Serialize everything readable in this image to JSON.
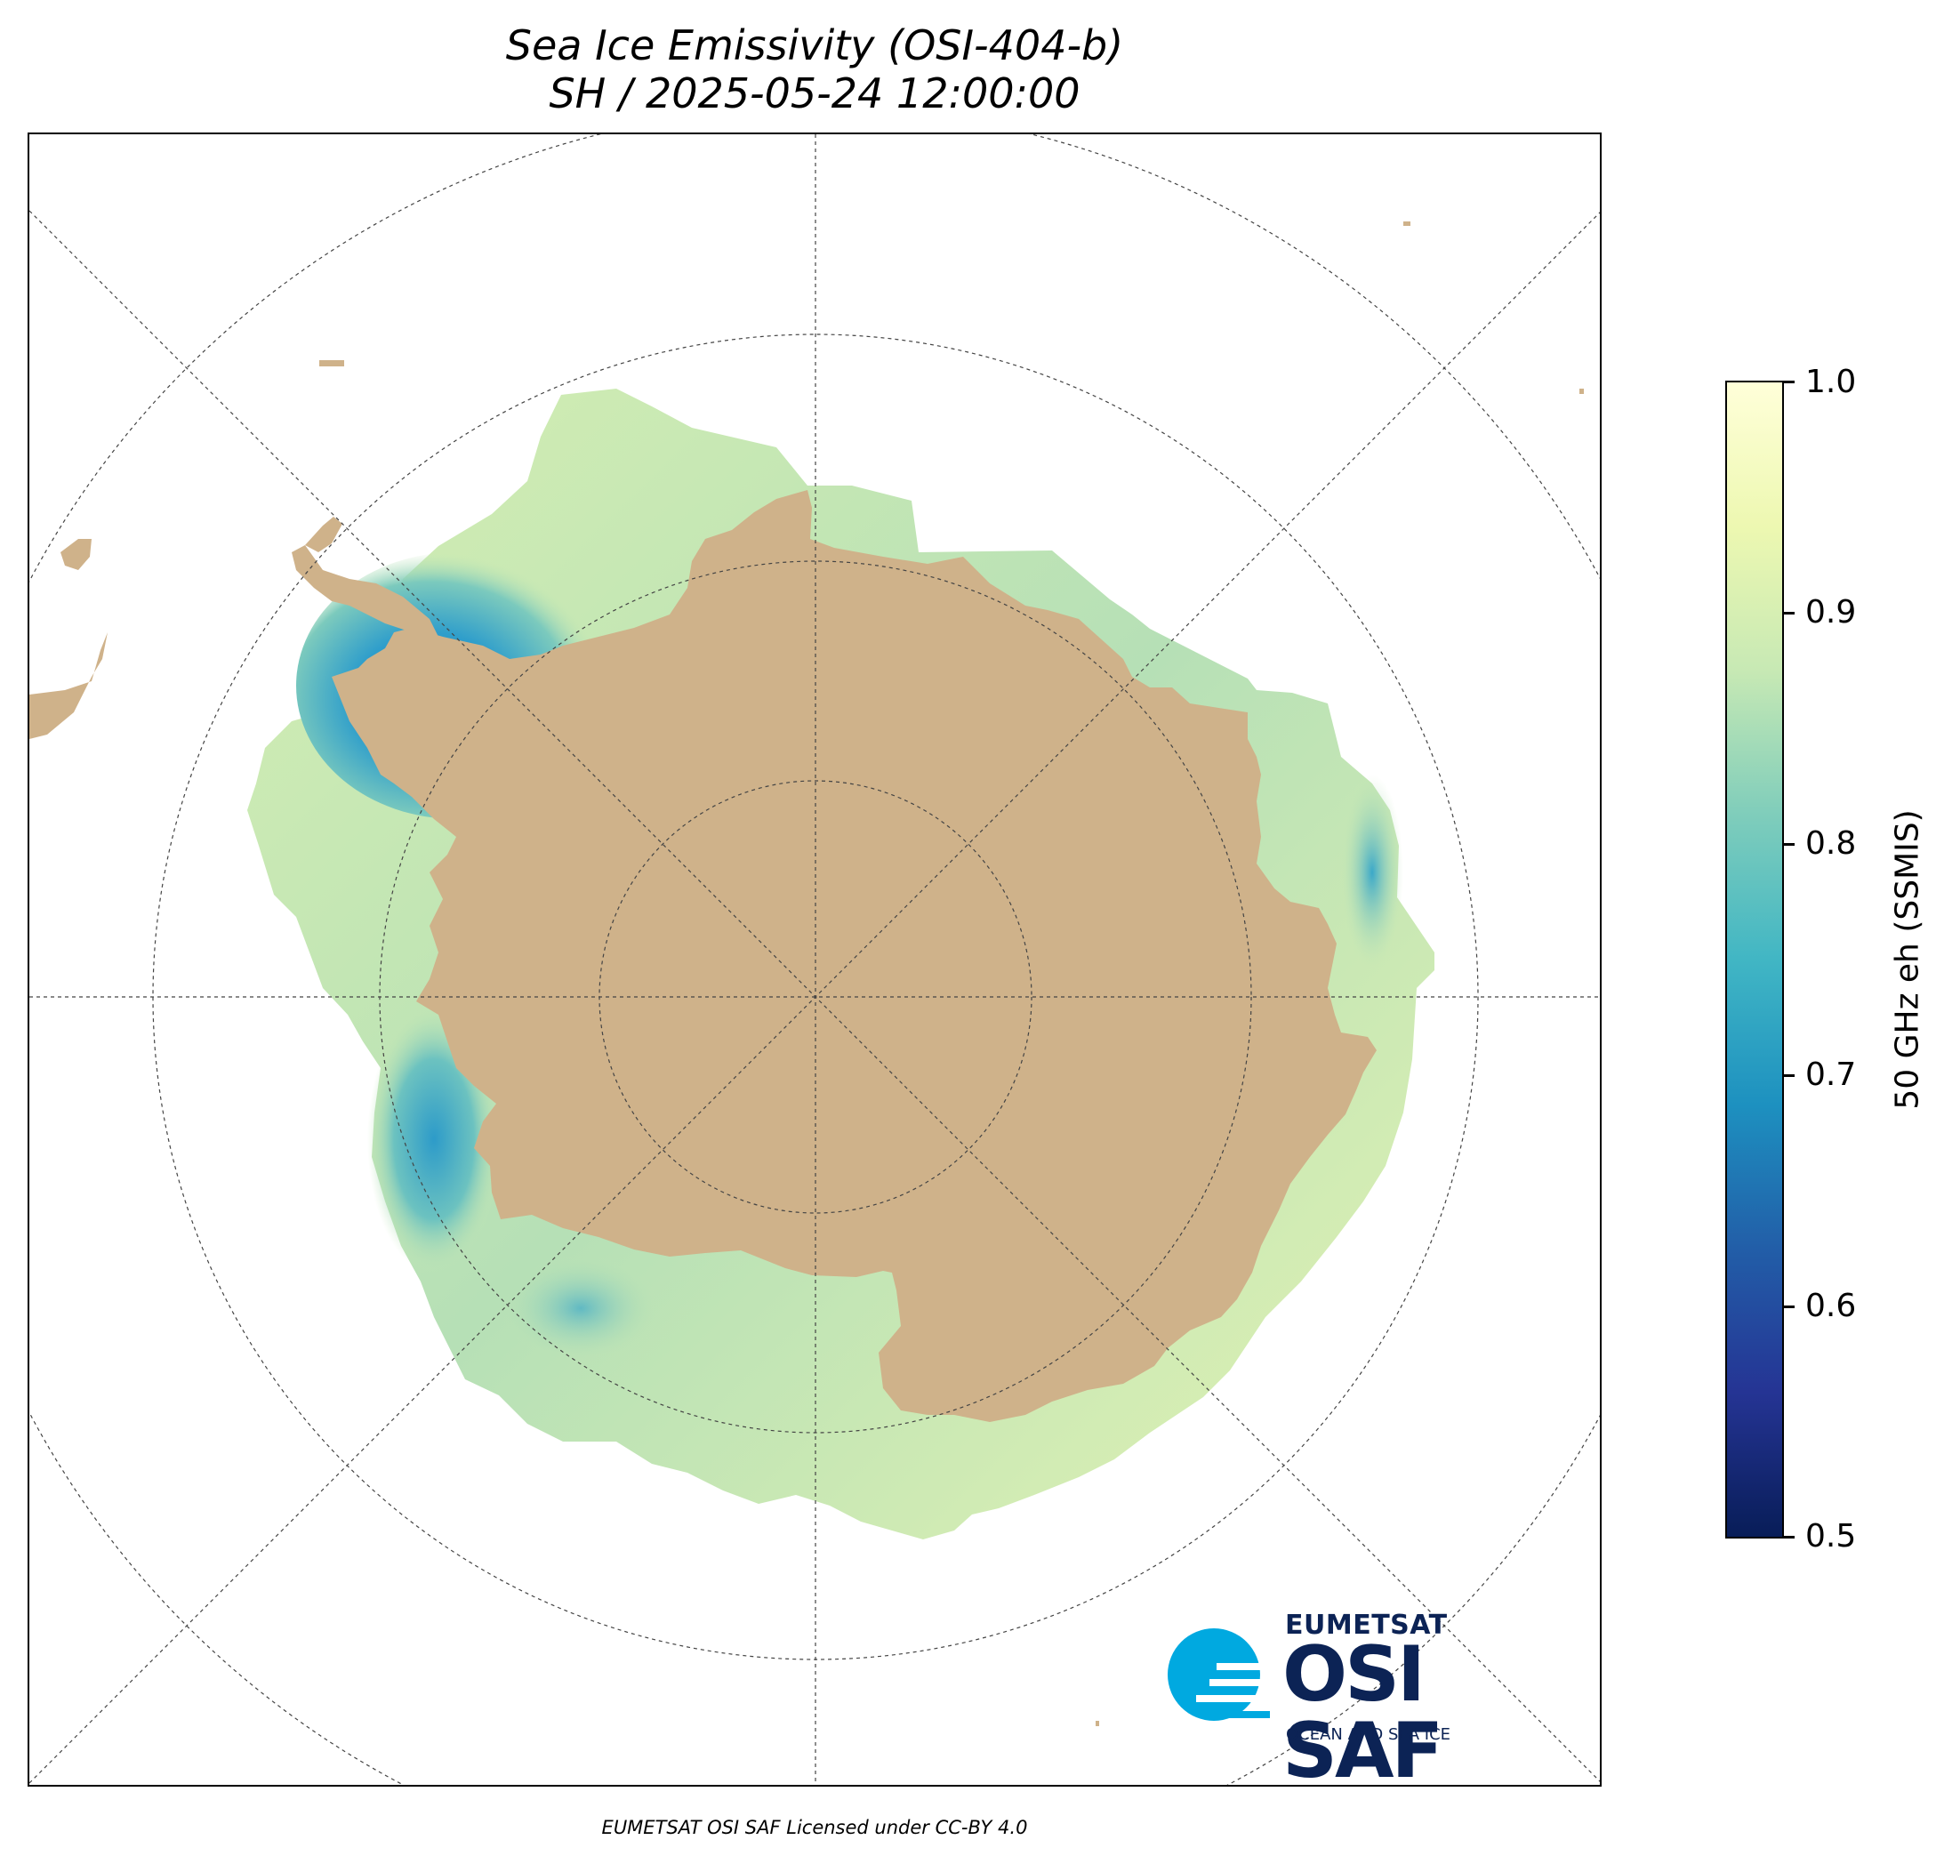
{
  "title": {
    "line1": "Sea Ice Emissivity (OSI-404-b)",
    "line2": "SH / 2025-05-24 12:00:00"
  },
  "map": {
    "projection": "south-polar-stereographic",
    "graticule": "dashed",
    "colors": {
      "land": "#cfb28a",
      "ocean": "#ffffff"
    }
  },
  "colorbar": {
    "label": "50 GHz eh (SSMIS)",
    "colormap": "YlGnBu",
    "min": 0.5,
    "max": 1.0,
    "ticks": [
      "1.0",
      "0.9",
      "0.8",
      "0.7",
      "0.6",
      "0.5"
    ]
  },
  "logo": {
    "top": "EUMETSAT",
    "main": "OSI SAF",
    "sub": "OCEAN AND SEA ICE",
    "colors": {
      "navy": "#0c2355",
      "cyan": "#00a9e0"
    }
  },
  "credit": "EUMETSAT OSI SAF Licensed under CC-BY 4.0"
}
